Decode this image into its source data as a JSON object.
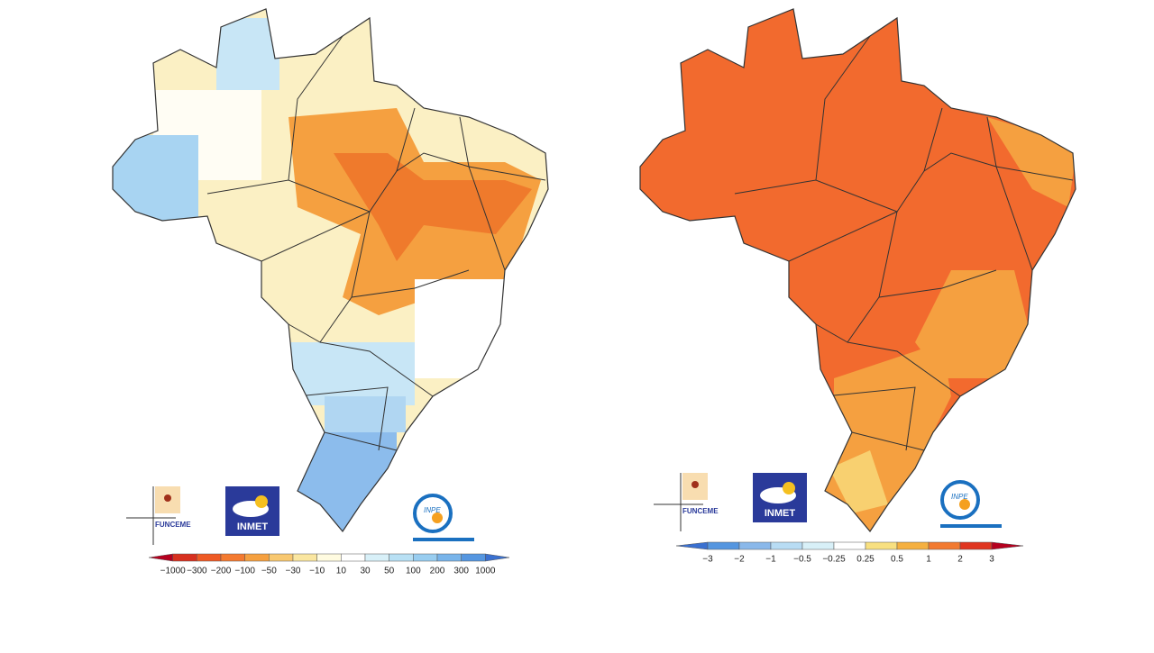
{
  "maps": [
    {
      "logos": {
        "funceme": "FUNCEME",
        "inmet": "INMET",
        "inpe": "INPE"
      },
      "legend": {
        "labels": [
          "−1000",
          "−300",
          "−200",
          "−100",
          "−50",
          "−30",
          "−10",
          "10",
          "30",
          "50",
          "100",
          "200",
          "300",
          "1000"
        ],
        "colors": [
          "#b5001f",
          "#d7301f",
          "#ee5a24",
          "#f47a30",
          "#f5a040",
          "#f8c870",
          "#fae6a0",
          "#fffbe0",
          "#ffffff",
          "#d8f0f8",
          "#b8e0f4",
          "#98cdf0",
          "#78b4ea",
          "#5596e0",
          "#3a70d0"
        ]
      }
    },
    {
      "logos": {
        "funceme": "FUNCEME",
        "inmet": "INMET",
        "inpe": "INPE"
      },
      "legend": {
        "labels": [
          "−3",
          "−2",
          "−1",
          "−0.5",
          "−0.25",
          "0.25",
          "0.5",
          "1",
          "2",
          "3"
        ],
        "colors": [
          "#3a70d0",
          "#5596e0",
          "#8ab8ea",
          "#b8dcf4",
          "#d8f0f8",
          "#ffffff",
          "#f8e080",
          "#f5b040",
          "#f27a30",
          "#e03520",
          "#b5001f"
        ]
      }
    }
  ]
}
